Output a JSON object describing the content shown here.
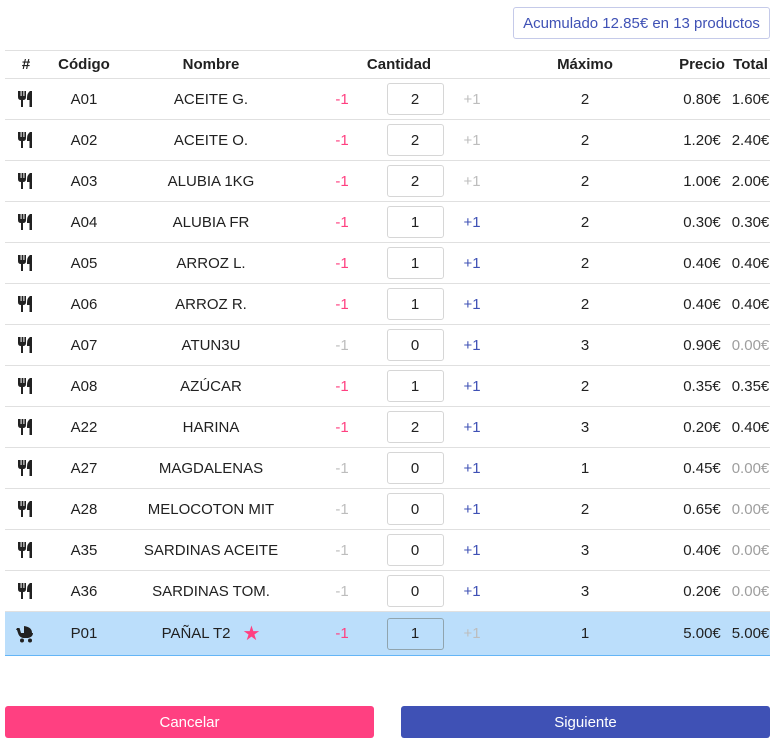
{
  "summary": {
    "text": "Acumulado 12.85€ en 13 productos"
  },
  "table": {
    "headers": {
      "icon": "#",
      "code": "Código",
      "name": "Nombre",
      "quantity": "Cantidad",
      "max": "Máximo",
      "price": "Precio",
      "total": "Total"
    },
    "minus_label": "-1",
    "plus_label": "+1",
    "rows": [
      {
        "icon": "utensils-icon",
        "code": "A01",
        "name": "ACEITE G.",
        "qty": "2",
        "max": "2",
        "price": "0.80€",
        "total": "1.60€",
        "minus_enabled": true,
        "plus_enabled": false,
        "starred": false,
        "selected": false
      },
      {
        "icon": "utensils-icon",
        "code": "A02",
        "name": "ACEITE O.",
        "qty": "2",
        "max": "2",
        "price": "1.20€",
        "total": "2.40€",
        "minus_enabled": true,
        "plus_enabled": false,
        "starred": false,
        "selected": false
      },
      {
        "icon": "utensils-icon",
        "code": "A03",
        "name": "ALUBIA 1KG",
        "qty": "2",
        "max": "2",
        "price": "1.00€",
        "total": "2.00€",
        "minus_enabled": true,
        "plus_enabled": false,
        "starred": false,
        "selected": false
      },
      {
        "icon": "utensils-icon",
        "code": "A04",
        "name": "ALUBIA FR",
        "qty": "1",
        "max": "2",
        "price": "0.30€",
        "total": "0.30€",
        "minus_enabled": true,
        "plus_enabled": true,
        "starred": false,
        "selected": false
      },
      {
        "icon": "utensils-icon",
        "code": "A05",
        "name": "ARROZ L.",
        "qty": "1",
        "max": "2",
        "price": "0.40€",
        "total": "0.40€",
        "minus_enabled": true,
        "plus_enabled": true,
        "starred": false,
        "selected": false
      },
      {
        "icon": "utensils-icon",
        "code": "A06",
        "name": "ARROZ R.",
        "qty": "1",
        "max": "2",
        "price": "0.40€",
        "total": "0.40€",
        "minus_enabled": true,
        "plus_enabled": true,
        "starred": false,
        "selected": false
      },
      {
        "icon": "utensils-icon",
        "code": "A07",
        "name": "ATUN3U",
        "qty": "0",
        "max": "3",
        "price": "0.90€",
        "total": "0.00€",
        "minus_enabled": false,
        "plus_enabled": true,
        "starred": false,
        "selected": false
      },
      {
        "icon": "utensils-icon",
        "code": "A08",
        "name": "AZÚCAR",
        "qty": "1",
        "max": "2",
        "price": "0.35€",
        "total": "0.35€",
        "minus_enabled": true,
        "plus_enabled": true,
        "starred": false,
        "selected": false
      },
      {
        "icon": "utensils-icon",
        "code": "A22",
        "name": "HARINA",
        "qty": "2",
        "max": "3",
        "price": "0.20€",
        "total": "0.40€",
        "minus_enabled": true,
        "plus_enabled": true,
        "starred": false,
        "selected": false
      },
      {
        "icon": "utensils-icon",
        "code": "A27",
        "name": "MAGDALENAS",
        "qty": "0",
        "max": "1",
        "price": "0.45€",
        "total": "0.00€",
        "minus_enabled": false,
        "plus_enabled": true,
        "starred": false,
        "selected": false
      },
      {
        "icon": "utensils-icon",
        "code": "A28",
        "name": "MELOCOTON MIT",
        "qty": "0",
        "max": "2",
        "price": "0.65€",
        "total": "0.00€",
        "minus_enabled": false,
        "plus_enabled": true,
        "starred": false,
        "selected": false
      },
      {
        "icon": "utensils-icon",
        "code": "A35",
        "name": "SARDINAS ACEITE",
        "qty": "0",
        "max": "3",
        "price": "0.40€",
        "total": "0.00€",
        "minus_enabled": false,
        "plus_enabled": true,
        "starred": false,
        "selected": false
      },
      {
        "icon": "utensils-icon",
        "code": "A36",
        "name": "SARDINAS TOM.",
        "qty": "0",
        "max": "3",
        "price": "0.20€",
        "total": "0.00€",
        "minus_enabled": false,
        "plus_enabled": true,
        "starred": false,
        "selected": false
      },
      {
        "icon": "baby-carriage-icon",
        "code": "P01",
        "name": "PAÑAL T2",
        "qty": "1",
        "max": "1",
        "price": "5.00€",
        "total": "5.00€",
        "minus_enabled": true,
        "plus_enabled": false,
        "starred": true,
        "selected": true
      }
    ]
  },
  "actions": {
    "cancel_label": "Cancelar",
    "next_label": "Siguiente"
  },
  "colors": {
    "accent_pink": "#ff4081",
    "primary_indigo": "#3f51b5",
    "selected_row": "#bbdefb"
  }
}
